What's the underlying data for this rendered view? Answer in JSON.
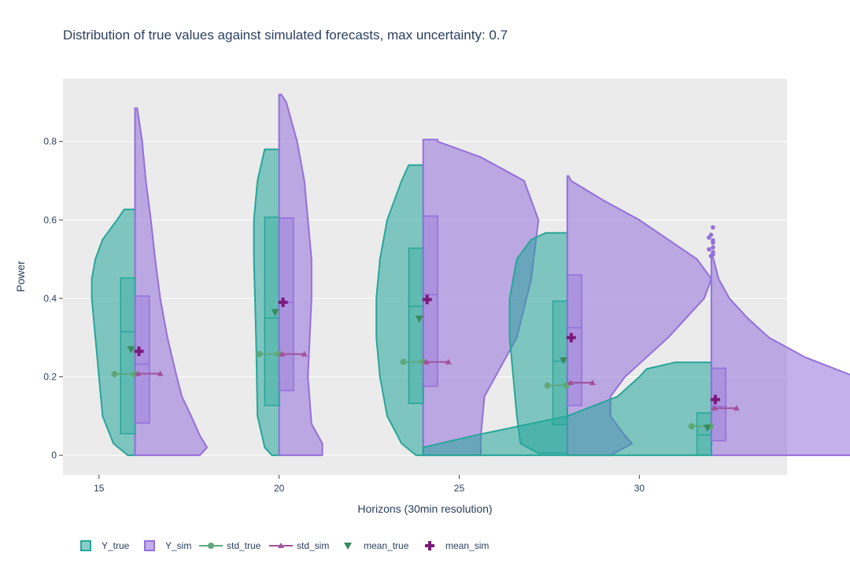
{
  "chart_data": {
    "type": "violin",
    "title": "Distribution of true values against simulated forecasts, max uncertainty: 0.7",
    "xlabel": "Horizons (30min resolution)",
    "ylabel": "Power",
    "xlim": [
      14,
      34.1
    ],
    "ylim": [
      -0.05,
      0.96
    ],
    "x_ticks": [
      15,
      20,
      25,
      30
    ],
    "y_ticks": [
      0,
      0.2,
      0.4,
      0.6,
      0.8
    ],
    "y_tick_labels": [
      "0",
      "0.2",
      "0.4",
      "0.6",
      "0.8"
    ],
    "grid": true,
    "legend_position": "bottom",
    "colors": {
      "Y_true": "#26a69a",
      "Y_sim": "#9370db",
      "std_true": "#5fa87a",
      "std_sim": "#a0529b",
      "mean_true": "#3a8a5e",
      "mean_sim": "#7b1a7b"
    },
    "legend": [
      {
        "name": "Y_true",
        "symbol": "box",
        "color": "#26a69a"
      },
      {
        "name": "Y_sim",
        "symbol": "box",
        "color": "#9370db"
      },
      {
        "name": "std_true",
        "symbol": "line-circle",
        "color": "#5fa87a"
      },
      {
        "name": "std_sim",
        "symbol": "line-triangle",
        "color": "#a0529b"
      },
      {
        "name": "mean_true",
        "symbol": "triangle-down",
        "color": "#3a8a5e"
      },
      {
        "name": "mean_sim",
        "symbol": "cross",
        "color": "#7b1a7b"
      }
    ],
    "horizons": [
      {
        "x": 16,
        "true": {
          "profile": [
            [
              0,
              0.01
            ],
            [
              0.03,
              0.03
            ],
            [
              0.1,
              0.045
            ],
            [
              0.2,
              0.05
            ],
            [
              0.3,
              0.055
            ],
            [
              0.4,
              0.06
            ],
            [
              0.45,
              0.06
            ],
            [
              0.5,
              0.055
            ],
            [
              0.55,
              0.045
            ],
            [
              0.6,
              0.025
            ],
            [
              0.627,
              0.015
            ]
          ],
          "box": {
            "q1": 0.055,
            "median": 0.315,
            "q3": 0.452,
            "max": 0.627,
            "min": 0
          },
          "mean": 0.27,
          "std": 0.207
        },
        "sim": {
          "profile": [
            [
              0,
              0.09
            ],
            [
              0.02,
              0.1
            ],
            [
              0.05,
              0.09
            ],
            [
              0.1,
              0.078
            ],
            [
              0.15,
              0.065
            ],
            [
              0.2,
              0.058
            ],
            [
              0.3,
              0.045
            ],
            [
              0.4,
              0.035
            ],
            [
              0.5,
              0.028
            ],
            [
              0.6,
              0.022
            ],
            [
              0.7,
              0.015
            ],
            [
              0.8,
              0.01
            ],
            [
              0.885,
              0.003
            ]
          ],
          "box": {
            "q1": 0.082,
            "median": 0.232,
            "q3": 0.406,
            "max": 0.885,
            "min": 0
          },
          "mean": 0.265,
          "std": 0.208,
          "outliers": []
        }
      },
      {
        "x": 20,
        "true": {
          "profile": [
            [
              0,
              0.01
            ],
            [
              0.02,
              0.02
            ],
            [
              0.1,
              0.03
            ],
            [
              0.3,
              0.032
            ],
            [
              0.5,
              0.035
            ],
            [
              0.6,
              0.035
            ],
            [
              0.7,
              0.03
            ],
            [
              0.78,
              0.02
            ]
          ],
          "box": {
            "q1": 0.127,
            "median": 0.35,
            "q3": 0.607,
            "max": 0.78,
            "min": 0
          },
          "mean": 0.365,
          "std": 0.258
        },
        "sim": {
          "profile": [
            [
              0,
              0.06
            ],
            [
              0.03,
              0.06
            ],
            [
              0.08,
              0.045
            ],
            [
              0.2,
              0.04
            ],
            [
              0.4,
              0.045
            ],
            [
              0.5,
              0.045
            ],
            [
              0.6,
              0.04
            ],
            [
              0.7,
              0.035
            ],
            [
              0.8,
              0.025
            ],
            [
              0.9,
              0.01
            ],
            [
              0.92,
              0.003
            ]
          ],
          "box": {
            "q1": 0.165,
            "median": 0.39,
            "q3": 0.605,
            "max": 0.92,
            "min": 0
          },
          "mean": 0.39,
          "std": 0.258,
          "outliers": []
        }
      },
      {
        "x": 24,
        "true": {
          "profile": [
            [
              0,
              0.01
            ],
            [
              0.03,
              0.03
            ],
            [
              0.1,
              0.05
            ],
            [
              0.2,
              0.06
            ],
            [
              0.3,
              0.065
            ],
            [
              0.4,
              0.065
            ],
            [
              0.5,
              0.06
            ],
            [
              0.6,
              0.05
            ],
            [
              0.7,
              0.03
            ],
            [
              0.74,
              0.02
            ]
          ],
          "box": {
            "q1": 0.132,
            "median": 0.38,
            "q3": 0.528,
            "max": 0.74,
            "min": 0
          },
          "mean": 0.348,
          "std": 0.238
        },
        "sim": {
          "profile": [
            [
              0,
              0.08
            ],
            [
              0.05,
              0.08
            ],
            [
              0.15,
              0.085
            ],
            [
              0.3,
              0.13
            ],
            [
              0.45,
              0.15
            ],
            [
              0.6,
              0.16
            ],
            [
              0.7,
              0.14
            ],
            [
              0.76,
              0.08
            ],
            [
              0.8,
              0.02
            ],
            [
              0.805,
              0.02
            ]
          ],
          "box": {
            "q1": 0.176,
            "median": 0.41,
            "q3": 0.61,
            "max": 0.805,
            "min": 0
          },
          "mean": 0.397,
          "std": 0.238,
          "outliers": []
        }
      },
      {
        "x": 28,
        "true": {
          "profile": [
            [
              0.005,
              0.04
            ],
            [
              0.03,
              0.065
            ],
            [
              0.1,
              0.07
            ],
            [
              0.2,
              0.075
            ],
            [
              0.3,
              0.08
            ],
            [
              0.4,
              0.08
            ],
            [
              0.5,
              0.07
            ],
            [
              0.55,
              0.05
            ],
            [
              0.567,
              0.03
            ]
          ],
          "box": {
            "q1": 0.078,
            "median": 0.24,
            "q3": 0.393,
            "max": 0.567,
            "min": 0.005
          },
          "mean": 0.242,
          "std": 0.178
        },
        "sim": {
          "profile": [
            [
              0,
              0.06
            ],
            [
              0.03,
              0.09
            ],
            [
              0.05,
              0.08
            ],
            [
              0.1,
              0.06
            ],
            [
              0.15,
              0.06
            ],
            [
              0.2,
              0.08
            ],
            [
              0.3,
              0.14
            ],
            [
              0.4,
              0.19
            ],
            [
              0.45,
              0.2
            ],
            [
              0.5,
              0.18
            ],
            [
              0.6,
              0.1
            ],
            [
              0.65,
              0.05
            ],
            [
              0.7,
              0.005
            ],
            [
              0.712,
              0.002
            ]
          ],
          "box": {
            "q1": 0.127,
            "median": 0.325,
            "q3": 0.46,
            "max": 0.712,
            "min": 0
          },
          "mean": 0.3,
          "std": 0.185,
          "outliers": []
        }
      },
      {
        "x": 32,
        "true": {
          "profile": [
            [
              0,
              0.4
            ],
            [
              0.02,
              0.4
            ],
            [
              0.05,
              0.33
            ],
            [
              0.1,
              0.2
            ],
            [
              0.15,
              0.13
            ],
            [
              0.2,
              0.1
            ],
            [
              0.22,
              0.09
            ],
            [
              0.237,
              0.05
            ]
          ],
          "box": {
            "q1": 0,
            "median": 0.052,
            "q3": 0.108,
            "max": 0.237,
            "min": 0
          },
          "mean": 0.07,
          "std": 0.074
        },
        "sim": {
          "profile": [
            [
              0,
              0.42
            ],
            [
              0.01,
              0.42
            ],
            [
              0.03,
              0.3
            ],
            [
              0.05,
              0.25
            ],
            [
              0.07,
              0.23
            ],
            [
              0.1,
              0.24
            ],
            [
              0.15,
              0.24
            ],
            [
              0.2,
              0.2
            ],
            [
              0.25,
              0.13
            ],
            [
              0.3,
              0.08
            ],
            [
              0.35,
              0.05
            ],
            [
              0.4,
              0.025
            ],
            [
              0.45,
              0.01
            ],
            [
              0.5,
              0.003
            ],
            [
              0.505,
              0.002
            ]
          ],
          "box": {
            "q1": 0.037,
            "median": 0.125,
            "q3": 0.222,
            "max": 0.505,
            "min": 0
          },
          "mean": 0.142,
          "std": 0.12,
          "outliers": [
            0.508,
            0.512,
            0.518,
            0.525,
            0.53,
            0.542,
            0.548,
            0.555,
            0.562,
            0.581
          ]
        }
      }
    ]
  }
}
